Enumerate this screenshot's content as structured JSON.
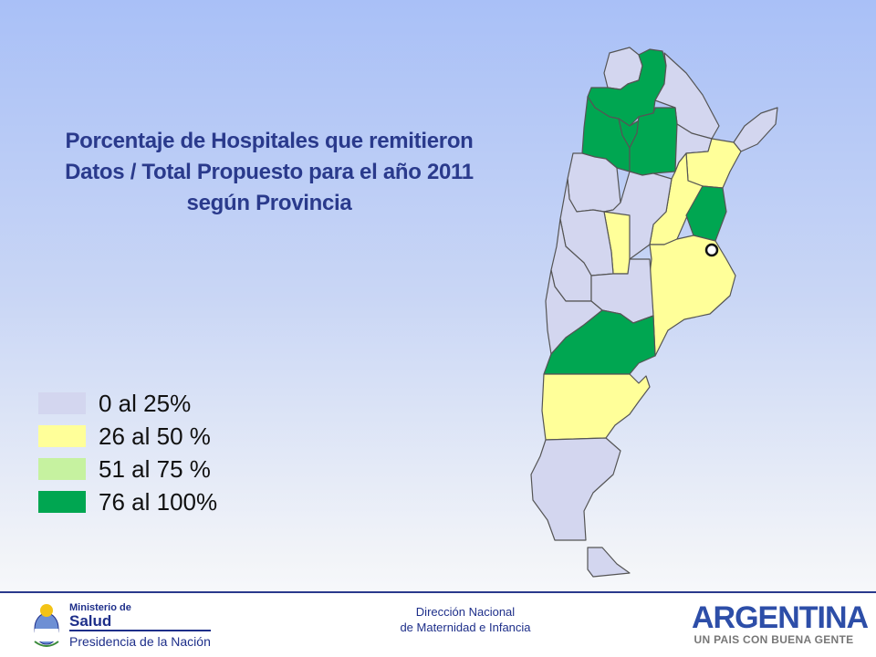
{
  "title": {
    "line1": "Porcentaje de Hospitales que remitieron",
    "line2": "Datos / Total Propuesto para el año 2011",
    "line3": "según Provincia"
  },
  "legend": [
    {
      "label": "0 al 25%",
      "color": "#d3d6ef"
    },
    {
      "label": "26 al 50 %",
      "color": "#ffff99"
    },
    {
      "label": "51 al 75 %",
      "color": "#c6f2a0"
    },
    {
      "label": "76 al 100%",
      "color": "#00a651"
    }
  ],
  "footer": {
    "ministry_line1": "Ministerio de",
    "ministry_line2": "Salud",
    "ministry_line3": "Presidencia de la Nación",
    "center_line1": "Dirección Nacional",
    "center_line2": "de Maternidad e Infancia",
    "brand_line1": "ARGENTINA",
    "brand_line2": "UN PAIS CON BUENA GENTE"
  }
}
